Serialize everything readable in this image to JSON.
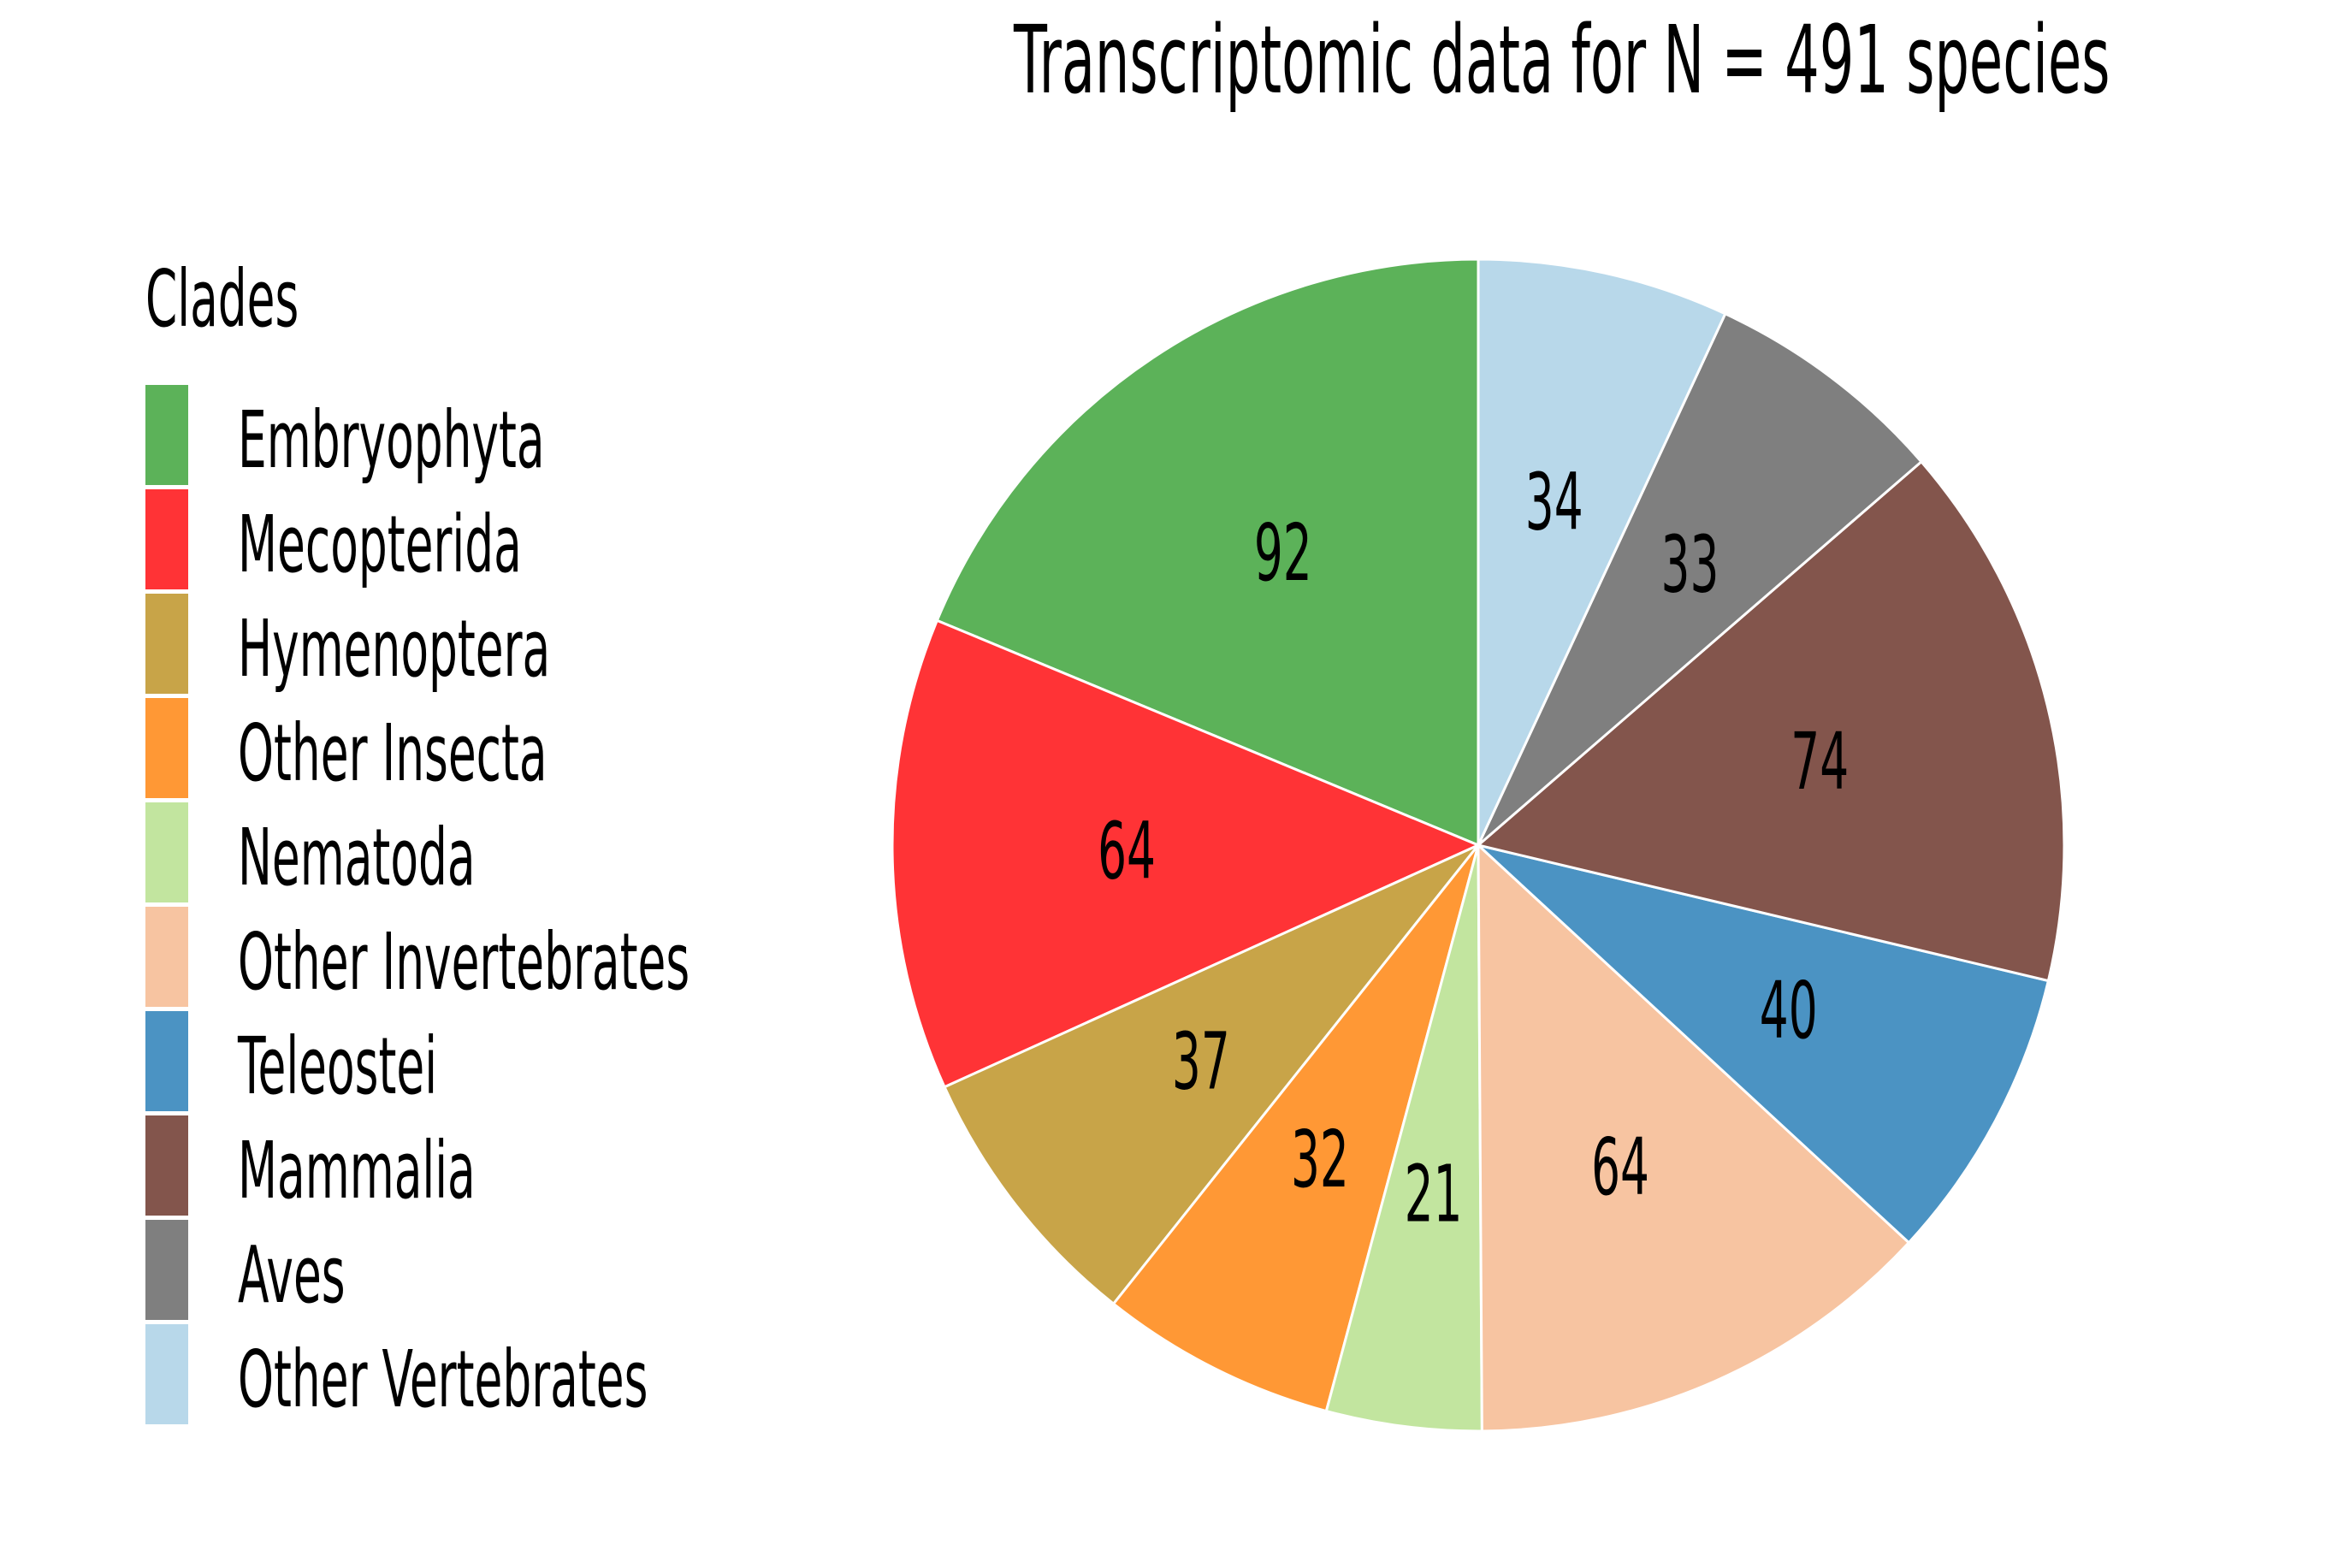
{
  "chart_data": {
    "type": "pie",
    "title": "Transcriptomic data for N = 491 species",
    "legend_title": "Clades",
    "legend_position": "left",
    "start_angle_deg": 90,
    "direction": "counterclockwise",
    "slices": [
      {
        "label": "Embryophyta",
        "value": 92,
        "color": "#5cb259"
      },
      {
        "label": "Mecopterida",
        "value": 64,
        "color": "#ff3336"
      },
      {
        "label": "Hymenoptera",
        "value": 37,
        "color": "#c8a448"
      },
      {
        "label": "Other Insecta",
        "value": 32,
        "color": "#ff9835"
      },
      {
        "label": "Nematoda",
        "value": 21,
        "color": "#c2e59f"
      },
      {
        "label": "Other Invertebrates",
        "value": 64,
        "color": "#f7c4a1"
      },
      {
        "label": "Teleostei",
        "value": 40,
        "color": "#4b93c3"
      },
      {
        "label": "Mammalia",
        "value": 74,
        "color": "#83554c"
      },
      {
        "label": "Aves",
        "value": 33,
        "color": "#7f7f7f"
      },
      {
        "label": "Other Vertebrates",
        "value": 34,
        "color": "#b8d8ea"
      }
    ]
  }
}
